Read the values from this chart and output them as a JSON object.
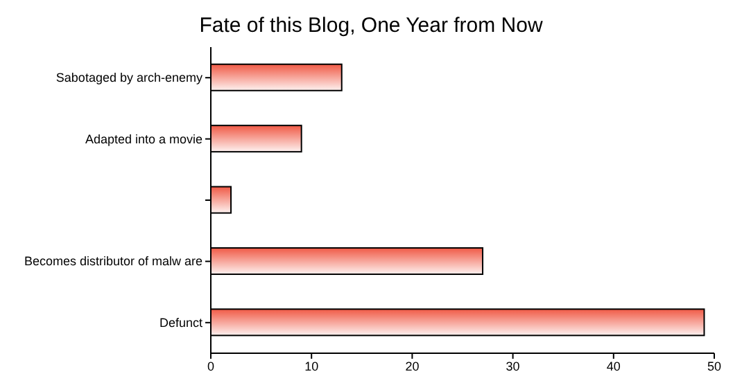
{
  "chart_data": {
    "type": "bar",
    "orientation": "horizontal",
    "title": "Fate of this Blog, One Year from Now",
    "categories": [
      "Sabotaged by arch-enemy",
      "Adapted into a movie",
      null,
      "Becomes distributor of malw are",
      "Defunct"
    ],
    "values": [
      13,
      9,
      2,
      27,
      49
    ],
    "color": "#f05a46",
    "xlim": [
      0,
      50
    ],
    "xticks": [
      0,
      10,
      20,
      30,
      40,
      50
    ],
    "grid": false
  }
}
